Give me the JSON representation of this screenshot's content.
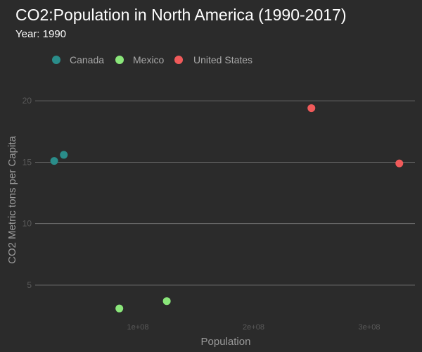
{
  "colors": {
    "background": "#2b2b2b",
    "grid": "#7a7a7a",
    "title": "#ffffff",
    "subtitle": "#ffffff",
    "axis_text": "#5a5a5a",
    "axis_title": "#9a9a9a",
    "legend_text": "#a8a8a8"
  },
  "chart_data": {
    "type": "scatter",
    "title": "CO2:Population in North America (1990-2017)",
    "subtitle": "Year: 1990",
    "xlabel": "Population",
    "ylabel": "CO2 Metric tons per Capita",
    "xlim": [
      0,
      340000000
    ],
    "ylim": [
      0.5,
      23
    ],
    "x_ticks": [
      {
        "value": 100000000,
        "label": "1e+08"
      },
      {
        "value": 200000000,
        "label": "2e+08"
      },
      {
        "value": 300000000,
        "label": "3e+08"
      }
    ],
    "y_ticks": [
      {
        "value": 5,
        "label": "5"
      },
      {
        "value": 10,
        "label": "10"
      },
      {
        "value": 15,
        "label": "15"
      },
      {
        "value": 20,
        "label": "20"
      }
    ],
    "grid": "horizontal-major",
    "legend_position": "top-left",
    "series": [
      {
        "name": "Canada",
        "color": "#2a8d8a",
        "points": [
          {
            "x": 27700000,
            "y": 15.1
          },
          {
            "x": 36000000,
            "y": 15.6
          }
        ]
      },
      {
        "name": "Mexico",
        "color": "#8ae67a",
        "points": [
          {
            "x": 84000000,
            "y": 3.1
          },
          {
            "x": 125000000,
            "y": 3.7
          }
        ]
      },
      {
        "name": "United States",
        "color": "#f05a5a",
        "points": [
          {
            "x": 250000000,
            "y": 19.4
          },
          {
            "x": 326000000,
            "y": 14.9
          }
        ]
      }
    ]
  }
}
